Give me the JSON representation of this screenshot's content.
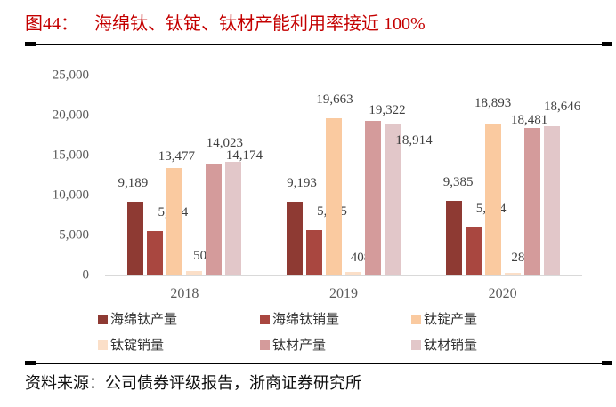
{
  "title": {
    "prefix": "图44：",
    "text": "海绵钛、钛锭、钛材产能利用率接近 100%"
  },
  "source": "资料来源：公司债券评级报告，浙商证券研究所",
  "colors": {
    "title_red": "#C40000",
    "axis_text": "#595959",
    "data_label": "#404040",
    "axis_line": "#D9D9D9",
    "divider": "#000000"
  },
  "chart_data": {
    "type": "bar",
    "categories": [
      "2018",
      "2019",
      "2020"
    ],
    "series": [
      {
        "name": "海绵钛产量",
        "color": "#8E3A33",
        "values": [
          9189,
          9193,
          9385
        ]
      },
      {
        "name": "海绵钛销量",
        "color": "#A94740",
        "values": [
          5564,
          5665,
          5984
        ]
      },
      {
        "name": "钛锭产量",
        "color": "#FACAA0",
        "values": [
          13477,
          19663,
          18893
        ]
      },
      {
        "name": "钛锭销量",
        "color": "#FBDFC8",
        "values": [
          502,
          408,
          287
        ]
      },
      {
        "name": "钛材产量",
        "color": "#D49B9B",
        "values": [
          14023,
          19322,
          18481
        ]
      },
      {
        "name": "钛材销量",
        "color": "#E2C7C9",
        "values": [
          14174,
          18914,
          18646
        ]
      }
    ],
    "ylim": [
      0,
      25000
    ],
    "ytick_step": 5000,
    "yticks": [
      "0",
      "5,000",
      "10,000",
      "15,000",
      "20,000",
      "25,000"
    ],
    "xlabel": "",
    "ylabel": "",
    "grid": false,
    "data_labels": true,
    "legend_position": "bottom",
    "label_offsets": [
      [
        [
          -3,
          12
        ],
        [
          20,
          12
        ],
        [
          2,
          4
        ],
        [
          10,
          8
        ],
        [
          12,
          14
        ],
        [
          12,
          -2
        ]
      ],
      [
        [
          8,
          12
        ],
        [
          20,
          12
        ],
        [
          1,
          12
        ],
        [
          8,
          7
        ],
        [
          16,
          3
        ],
        [
          24,
          -27
        ]
      ],
      [
        [
          5,
          12
        ],
        [
          20,
          12
        ],
        [
          0,
          15
        ],
        [
          10,
          8
        ],
        [
          -3,
          0
        ],
        [
          12,
          13
        ]
      ]
    ]
  }
}
